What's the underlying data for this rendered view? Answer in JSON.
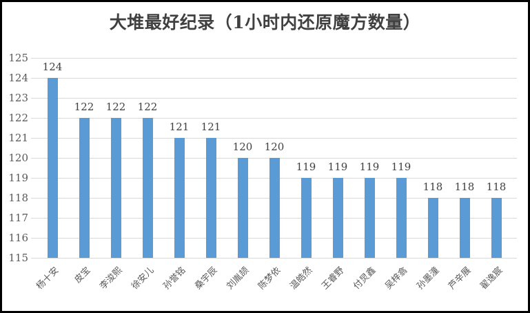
{
  "page": {
    "background": "#ffffff",
    "border_color": "#000000"
  },
  "chart_data": {
    "type": "bar",
    "title": "大堆最好纪录（1小时内还原魔方数量）",
    "categories": [
      "杨十安",
      "皮宝",
      "李浚熙",
      "徐安儿",
      "孙誉铭",
      "桑宇辰",
      "刘胤颉",
      "陈梦依",
      "温皓然",
      "王睿野",
      "付炅鑫",
      "吴梓翕",
      "孙墨潼",
      "芦辛展",
      "翟逸宸"
    ],
    "values": [
      124,
      122,
      122,
      122,
      121,
      121,
      120,
      120,
      119,
      119,
      119,
      119,
      118,
      118,
      118
    ],
    "xlabel": "",
    "ylabel": "",
    "ylim": [
      115,
      125
    ],
    "ytick_step": 1,
    "grid": true,
    "legend": false,
    "bar_color": "#5b9bd5",
    "value_label_color": "#404040",
    "axis_label_color": "#595959",
    "gridline_color": "#d9d9d9",
    "title_color": "#404040"
  }
}
